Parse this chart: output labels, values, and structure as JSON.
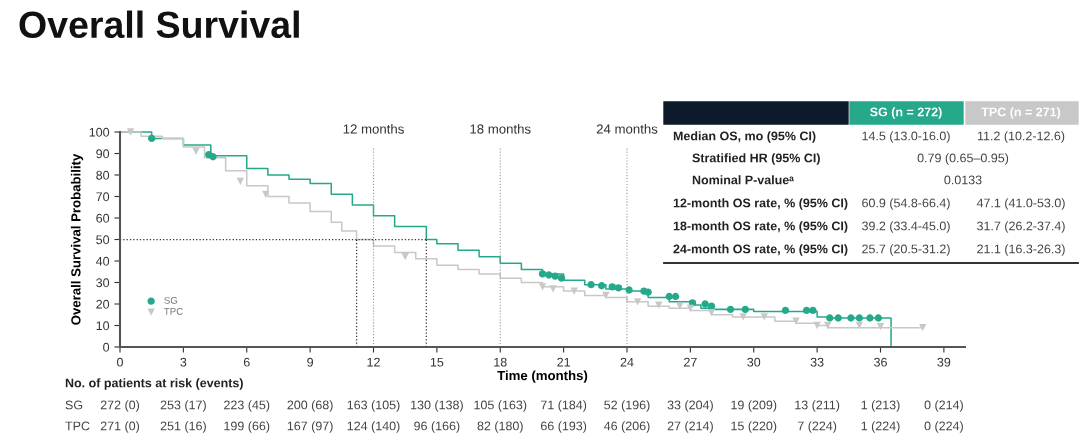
{
  "chart_data": {
    "type": "step",
    "title": "Overall Survival",
    "xlabel": "Time (months)",
    "ylabel": "Overall Survival Probability",
    "xlim": [
      0,
      40
    ],
    "xticks": [
      0,
      3,
      6,
      9,
      12,
      15,
      18,
      21,
      24,
      27,
      30,
      33,
      36,
      39
    ],
    "ylim": [
      0,
      100
    ],
    "yticks": [
      0,
      10,
      20,
      30,
      40,
      50,
      60,
      70,
      80,
      90,
      100
    ],
    "grid": false,
    "legend": "bottom left",
    "series": [
      {
        "color": "#26a98b",
        "x": [
          0,
          1.5,
          3,
          4.3,
          6,
          7,
          8,
          9,
          10,
          11,
          12,
          13,
          14.5,
          15,
          16,
          17,
          18,
          19,
          20,
          21,
          22,
          23,
          24,
          25,
          26,
          27,
          27.5,
          28,
          30,
          33,
          33.5,
          36.5,
          36.5
        ],
        "values": [
          100,
          97,
          94,
          89,
          83,
          80,
          78,
          76,
          71,
          66,
          61,
          56,
          50,
          48,
          45,
          42,
          39,
          36,
          34,
          31,
          29,
          27,
          26,
          23,
          21,
          19.5,
          18,
          17.5,
          16.5,
          14,
          13.5,
          13.5,
          0
        ]
      },
      {
        "color": "#c8c8c8",
        "x": [
          0,
          1,
          2,
          3,
          4,
          5,
          6,
          7,
          8,
          9,
          10,
          10.5,
          11.2,
          12,
          13,
          14,
          15,
          16,
          17,
          18,
          19,
          20,
          21,
          22,
          23,
          24,
          25,
          26,
          27,
          28,
          29,
          31,
          32,
          33,
          33.5,
          38
        ],
        "values": [
          100,
          98,
          97,
          93,
          88,
          82,
          75,
          70,
          67,
          63,
          58,
          54,
          50,
          47,
          44,
          41,
          38,
          36,
          34,
          32,
          30,
          28,
          26,
          24,
          23,
          21,
          19,
          18,
          17,
          15,
          14,
          12,
          11,
          10,
          9,
          9
        ]
      },
      {
        "type": "scatter",
        "name": "SG",
        "marker": "circle",
        "color": "#26a98b",
        "x": [
          1.5,
          4.2,
          4.4,
          20,
          20.3,
          20.6,
          20.9,
          22.3,
          22.8,
          23.3,
          23.6,
          24.1,
          24.8,
          25,
          26,
          26.3,
          27.1,
          27.7,
          28,
          28.9,
          29.6,
          31.5,
          32.5,
          32.8,
          33.6,
          34,
          34.6,
          35,
          35.5,
          35.9
        ],
        "values": [
          97,
          89.5,
          88.5,
          34,
          33.5,
          33,
          32,
          29,
          28.5,
          28,
          27.5,
          26.5,
          26,
          25.5,
          23.5,
          23.5,
          20.5,
          20,
          19,
          17.5,
          17.5,
          17,
          17,
          17,
          13.5,
          13.5,
          13.5,
          13.5,
          13.5,
          13.5
        ]
      },
      {
        "type": "scatter",
        "name": "TPC",
        "marker": "triangle",
        "color": "#c8c8c8",
        "x": [
          0.5,
          3.6,
          5.7,
          6.9,
          13.5,
          20,
          20.5,
          21.5,
          23,
          24.5,
          25.5,
          26.5,
          27,
          28,
          29.5,
          30.5,
          32,
          33,
          33.5,
          35,
          36,
          38
        ],
        "values": [
          100,
          91,
          77,
          71,
          42,
          28,
          27,
          26,
          24,
          21,
          19.5,
          19,
          18,
          16,
          14,
          14,
          12,
          10,
          10,
          10,
          9.5,
          9
        ]
      },
      {
        "type": "line",
        "line_style": "dotted",
        "color": "#333333",
        "x": [
          0,
          14.5
        ],
        "values": [
          50,
          50
        ]
      },
      {
        "type": "line",
        "line_style": "dotted",
        "color": "#333333",
        "x": [
          11.2,
          11.2
        ],
        "values": [
          0,
          50
        ]
      },
      {
        "type": "line",
        "line_style": "dotted",
        "color": "#333333",
        "x": [
          14.5,
          14.5
        ],
        "values": [
          0,
          50
        ]
      }
    ],
    "ref_lines": [
      {
        "axis": "x",
        "value": 12,
        "label": "12 months",
        "color": "#999999",
        "line_style": "dotted"
      },
      {
        "axis": "x",
        "value": 18,
        "label": "18 months",
        "color": "#999999",
        "line_style": "dotted"
      },
      {
        "axis": "x",
        "value": 24,
        "label": "24 months",
        "color": "#999999",
        "line_style": "dotted"
      }
    ],
    "annotations": [
      "SG (n = 272)",
      "TPC (n = 271)",
      "Median OS, mo (95% CI)",
      "14.5 (13.0-16.0)",
      "11.2 (10.2-12.6)",
      "Stratified HR (95% CI)",
      "0.79 (0.65–0.95)",
      "Nominal P-valueᵃ",
      "0.0133",
      "12-month OS rate, % (95% CI)",
      "60.9 (54.8-66.4)",
      "47.1 (41.0-53.0)",
      "18-month OS rate, % (95% CI)",
      "39.2 (33.4-45.0)",
      "31.7 (26.2-37.4)",
      "24-month OS rate, % (95% CI)",
      "25.7 (20.5-31.2)",
      "21.1 (16.3-26.3)",
      "No. of patients at risk (events)",
      "SG",
      "272 (0)",
      "253 (17)",
      "223 (45)",
      "200 (68)",
      "163 (105)",
      "130 (138)",
      "105 (163)",
      "71 (184)",
      "52 (196)",
      "33 (204)",
      "19 (209)",
      "13 (211)",
      "1 (213)",
      "0 (214)",
      "TPC",
      "271 (0)",
      "251 (16)",
      "199 (66)",
      "167 (97)",
      "124 (140)",
      "96 (166)",
      "82 (180)",
      "66 (193)",
      "46 (206)",
      "27 (214)",
      "15 (220)",
      "7 (224)",
      "1 (224)",
      "0 (224)"
    ]
  }
}
